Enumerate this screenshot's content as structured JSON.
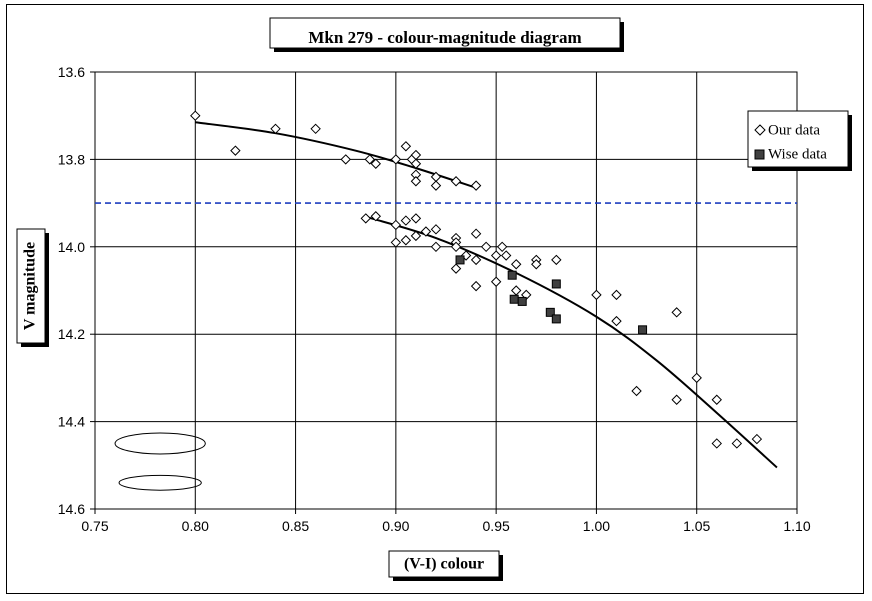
{
  "chart_data": {
    "type": "scatter",
    "title": "Mkn 279 - colour-magnitude diagram",
    "xlabel": "(V-I) colour",
    "ylabel": "V magnitude",
    "xlim": [
      0.75,
      1.1
    ],
    "ylim": [
      13.6,
      14.6
    ],
    "y_inverted": true,
    "x_ticks": [
      "0.75",
      "0.80",
      "0.85",
      "0.90",
      "0.95",
      "1.00",
      "1.05",
      "1.10"
    ],
    "y_ticks": [
      "13.6",
      "13.8",
      "14.0",
      "14.2",
      "14.4",
      "14.6"
    ],
    "grid": true,
    "legend_position": "right",
    "series": [
      {
        "name": "Our data",
        "marker": "open-diamond",
        "points": [
          [
            0.8,
            13.7
          ],
          [
            0.82,
            13.78
          ],
          [
            0.84,
            13.73
          ],
          [
            0.86,
            13.73
          ],
          [
            0.875,
            13.8
          ],
          [
            0.887,
            13.8
          ],
          [
            0.89,
            13.81
          ],
          [
            0.9,
            13.8
          ],
          [
            0.905,
            13.77
          ],
          [
            0.908,
            13.8
          ],
          [
            0.91,
            13.79
          ],
          [
            0.91,
            13.81
          ],
          [
            0.91,
            13.835
          ],
          [
            0.91,
            13.85
          ],
          [
            0.92,
            13.84
          ],
          [
            0.92,
            13.86
          ],
          [
            0.93,
            13.85
          ],
          [
            0.94,
            13.86
          ],
          [
            0.885,
            13.935
          ],
          [
            0.89,
            13.93
          ],
          [
            0.9,
            13.95
          ],
          [
            0.905,
            13.94
          ],
          [
            0.91,
            13.935
          ],
          [
            0.9,
            13.99
          ],
          [
            0.905,
            13.985
          ],
          [
            0.91,
            13.975
          ],
          [
            0.915,
            13.965
          ],
          [
            0.92,
            13.96
          ],
          [
            0.92,
            14.0
          ],
          [
            0.93,
            13.98
          ],
          [
            0.93,
            13.99
          ],
          [
            0.93,
            14.0
          ],
          [
            0.935,
            14.02
          ],
          [
            0.93,
            14.05
          ],
          [
            0.94,
            13.97
          ],
          [
            0.94,
            14.03
          ],
          [
            0.945,
            14.0
          ],
          [
            0.95,
            14.02
          ],
          [
            0.953,
            14.0
          ],
          [
            0.95,
            14.08
          ],
          [
            0.94,
            14.09
          ],
          [
            0.955,
            14.02
          ],
          [
            0.96,
            14.04
          ],
          [
            0.96,
            14.1
          ],
          [
            0.965,
            14.11
          ],
          [
            0.97,
            14.03
          ],
          [
            0.97,
            14.04
          ],
          [
            0.98,
            14.03
          ],
          [
            1.0,
            14.11
          ],
          [
            1.01,
            14.11
          ],
          [
            1.01,
            14.17
          ],
          [
            1.02,
            14.33
          ],
          [
            1.04,
            14.15
          ],
          [
            1.04,
            14.35
          ],
          [
            1.05,
            14.3
          ],
          [
            1.06,
            14.35
          ],
          [
            1.06,
            14.45
          ],
          [
            1.07,
            14.45
          ],
          [
            1.08,
            14.44
          ]
        ]
      },
      {
        "name": "Wise data",
        "marker": "filled-square",
        "points": [
          [
            0.932,
            14.03
          ],
          [
            0.958,
            14.065
          ],
          [
            0.959,
            14.12
          ],
          [
            0.963,
            14.125
          ],
          [
            0.977,
            14.15
          ],
          [
            0.98,
            14.165
          ],
          [
            0.98,
            14.085
          ],
          [
            1.023,
            14.19
          ]
        ]
      }
    ],
    "fits": [
      {
        "points": [
          [
            0.8,
            13.715
          ],
          [
            0.84,
            13.74
          ],
          [
            0.88,
            13.78
          ],
          [
            0.91,
            13.82
          ],
          [
            0.94,
            13.865
          ]
        ]
      },
      {
        "points": [
          [
            0.884,
            13.93
          ],
          [
            0.92,
            13.98
          ],
          [
            0.96,
            14.06
          ],
          [
            1.0,
            14.16
          ],
          [
            1.03,
            14.26
          ],
          [
            1.06,
            14.38
          ],
          [
            1.09,
            14.505
          ]
        ]
      }
    ],
    "reference_line": {
      "y": 13.9,
      "style": "dashed",
      "color": "#1f3fbf"
    },
    "error_ellipses": [
      {
        "cx": 0.7825,
        "cy": 14.45,
        "rx": 0.0225,
        "ry": 0.024
      },
      {
        "cx": 0.7825,
        "cy": 14.54,
        "rx": 0.0205,
        "ry": 0.017
      }
    ],
    "colors": {
      "plot_area": "#ffffff",
      "grid": "#000000",
      "text_box": "#ffffff",
      "wise_fill": "#404040"
    }
  }
}
